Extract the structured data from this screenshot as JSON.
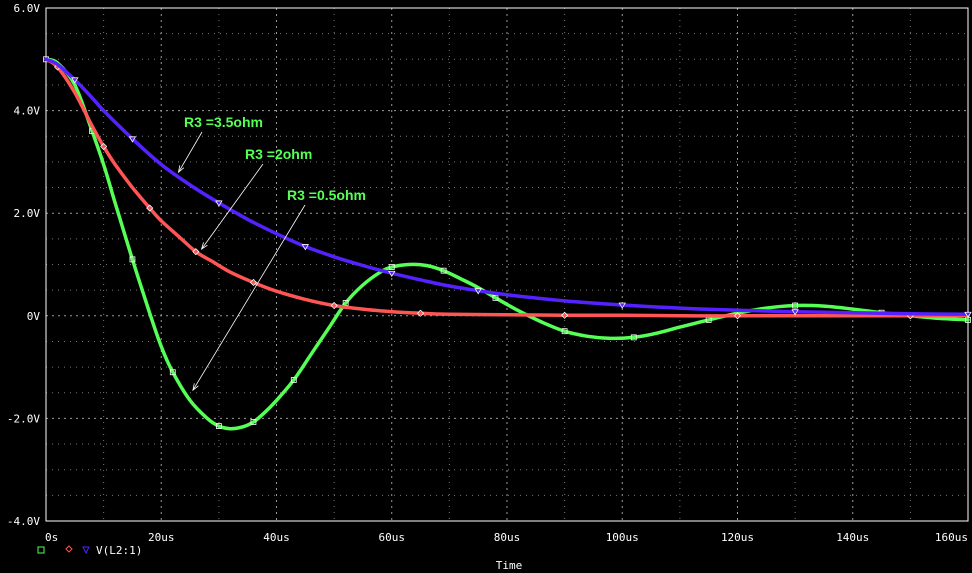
{
  "chart_data": {
    "type": "line",
    "xlabel": "Time",
    "xlim": [
      0,
      160
    ],
    "ylim": [
      -4,
      6
    ],
    "grid": true,
    "x_ticks": [
      "0s",
      "20us",
      "40us",
      "60us",
      "80us",
      "100us",
      "120us",
      "140us",
      "160us"
    ],
    "x_tick_values": [
      0,
      20,
      40,
      60,
      80,
      100,
      120,
      140,
      160
    ],
    "y_ticks": [
      "6.0V",
      "4.0V",
      "2.0V",
      "0V",
      "-2.0V",
      "-4.0V"
    ],
    "y_tick_values": [
      6,
      4,
      2,
      0,
      -2,
      -4
    ],
    "legend": {
      "placement": "bottom-left",
      "label": "V(L2:1)"
    },
    "series": [
      {
        "marker": "square",
        "color": "#55ff55",
        "x": [
          0,
          2,
          5,
          8,
          10,
          12,
          15,
          18,
          20,
          22,
          25,
          28,
          30,
          32,
          34,
          36,
          38,
          40,
          43,
          46,
          49,
          52,
          55,
          58,
          60,
          63,
          66,
          69,
          72,
          75,
          78,
          82,
          86,
          90,
          94,
          98,
          102,
          106,
          110,
          115,
          120,
          125,
          130,
          135,
          140,
          145,
          150,
          155,
          160
        ],
        "y": [
          5,
          4.93,
          4.5,
          3.6,
          2.95,
          2.2,
          1.1,
          0.05,
          -0.6,
          -1.1,
          -1.65,
          -2.0,
          -2.15,
          -2.2,
          -2.17,
          -2.07,
          -1.88,
          -1.65,
          -1.25,
          -0.75,
          -0.25,
          0.25,
          0.6,
          0.85,
          0.95,
          1.0,
          0.98,
          0.88,
          0.72,
          0.55,
          0.35,
          0.1,
          -0.12,
          -0.3,
          -0.4,
          -0.44,
          -0.42,
          -0.34,
          -0.22,
          -0.08,
          0.05,
          0.15,
          0.2,
          0.19,
          0.13,
          0.06,
          0.0,
          -0.05,
          -0.08
        ]
      },
      {
        "marker": "diamond",
        "color": "#ff5555",
        "x": [
          0,
          2,
          5,
          8,
          10,
          12,
          15,
          18,
          20,
          23,
          26,
          29,
          32,
          36,
          40,
          45,
          50,
          55,
          60,
          65,
          70,
          80,
          90,
          100,
          110,
          120,
          130,
          140,
          150,
          160
        ],
        "y": [
          5,
          4.85,
          4.35,
          3.7,
          3.3,
          2.95,
          2.5,
          2.1,
          1.85,
          1.55,
          1.25,
          1.05,
          0.85,
          0.65,
          0.48,
          0.32,
          0.2,
          0.13,
          0.08,
          0.05,
          0.03,
          0.02,
          0.01,
          0.01,
          0.0,
          0.0,
          0.0,
          0.0,
          0.0,
          0.0
        ]
      },
      {
        "marker": "triangle",
        "color": "#5522ff",
        "x": [
          0,
          2,
          5,
          8,
          10,
          15,
          20,
          25,
          30,
          35,
          40,
          45,
          50,
          55,
          60,
          65,
          70,
          75,
          80,
          90,
          100,
          110,
          120,
          130,
          140,
          150,
          160
        ],
        "y": [
          5,
          4.9,
          4.6,
          4.25,
          4.0,
          3.45,
          2.95,
          2.55,
          2.2,
          1.88,
          1.6,
          1.35,
          1.15,
          0.98,
          0.83,
          0.7,
          0.58,
          0.49,
          0.41,
          0.29,
          0.21,
          0.15,
          0.11,
          0.08,
          0.06,
          0.04,
          0.03
        ]
      }
    ],
    "annotations": [
      {
        "text": "R3 =3.5ohm",
        "target_x": 23,
        "target_y": 2.8
      },
      {
        "text": "R3 =2ohm",
        "target_x": 27,
        "target_y": 1.3
      },
      {
        "text": "R3 =0.5ohm",
        "target_x": 25.5,
        "target_y": -1.45
      }
    ]
  }
}
